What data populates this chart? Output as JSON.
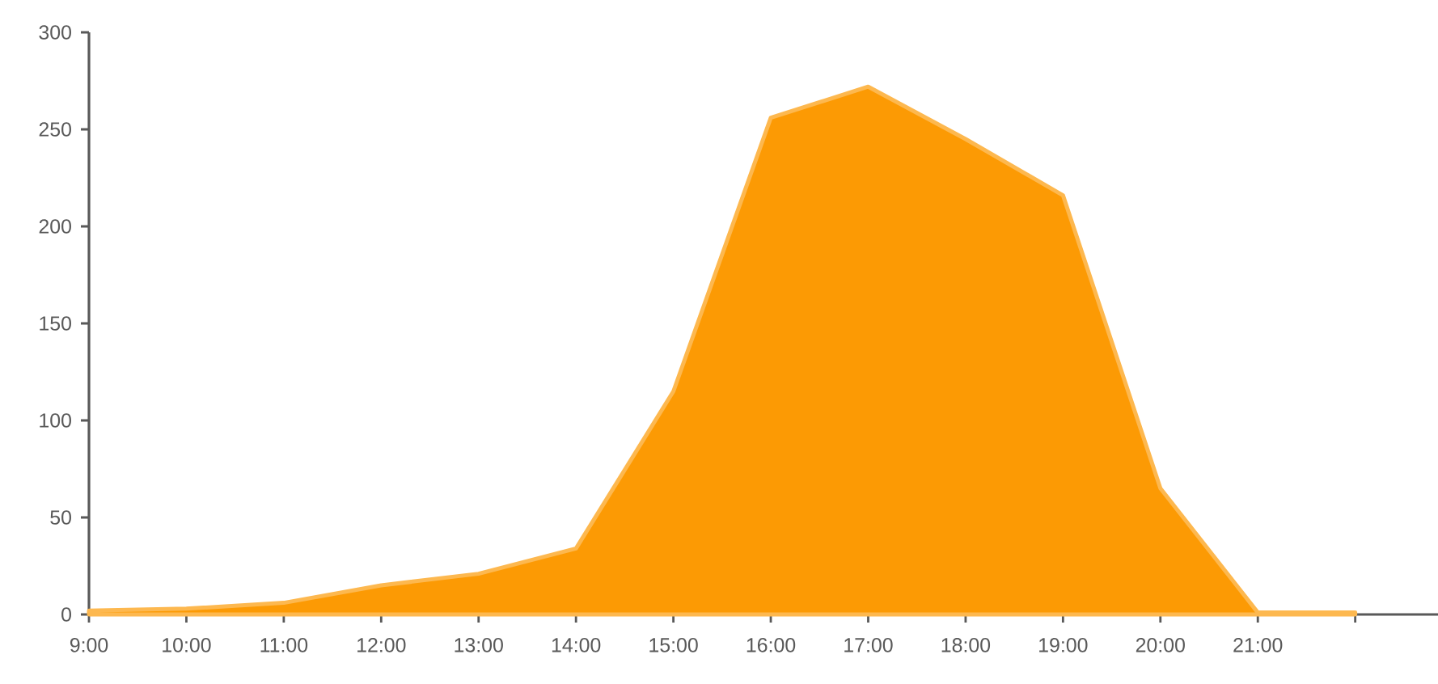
{
  "chart_data": {
    "type": "area",
    "categories": [
      "9:00",
      "10:00",
      "11:00",
      "12:00",
      "13:00",
      "14:00",
      "15:00",
      "16:00",
      "17:00",
      "18:00",
      "19:00",
      "20:00",
      "21:00",
      null
    ],
    "values": [
      2,
      3,
      6,
      15,
      21,
      34,
      115,
      256,
      272,
      245,
      216,
      65,
      1,
      1
    ],
    "color": "#fc9a04",
    "ylim": [
      0,
      300
    ],
    "yticks": [
      0,
      50,
      100,
      150,
      200,
      250,
      300
    ],
    "grid": false
  }
}
